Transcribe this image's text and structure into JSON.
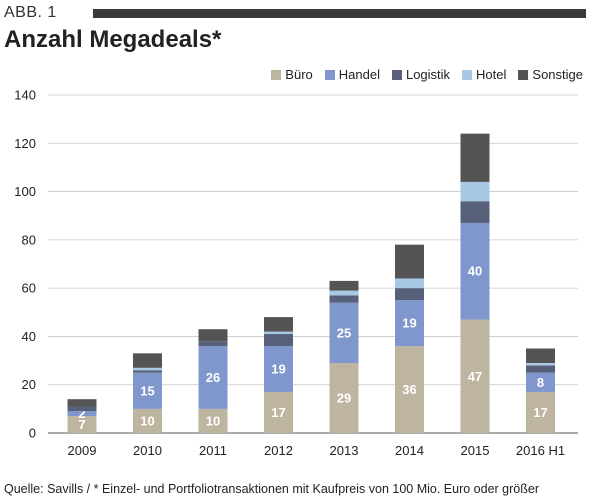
{
  "figure_label": "ABB. 1",
  "chart_data": {
    "type": "bar",
    "stacked": true,
    "title": "Anzahl Megadeals*",
    "categories": [
      "2009",
      "2010",
      "2011",
      "2012",
      "2013",
      "2014",
      "2015",
      "2016 H1"
    ],
    "ylim": [
      0,
      140
    ],
    "yticks": [
      0,
      20,
      40,
      60,
      80,
      100,
      120,
      140
    ],
    "grid": true,
    "legend_position": "top-right",
    "series": [
      {
        "name": "Büro",
        "color": "#bdb59f",
        "values": [
          7,
          10,
          10,
          17,
          29,
          36,
          47,
          17
        ],
        "labels": [
          "7",
          "10",
          "10",
          "17",
          "29",
          "36",
          "47",
          "17"
        ]
      },
      {
        "name": "Handel",
        "color": "#7f97cc",
        "values": [
          2,
          15,
          26,
          19,
          25,
          19,
          40,
          8
        ],
        "labels": [
          "2",
          "15",
          "26",
          "19",
          "25",
          "19",
          "40",
          "8"
        ]
      },
      {
        "name": "Logistik",
        "color": "#566079",
        "values": [
          2,
          1,
          2,
          5,
          3,
          5,
          9,
          3
        ],
        "labels": []
      },
      {
        "name": "Hotel",
        "color": "#a9c8e6",
        "values": [
          0,
          1,
          0,
          1,
          2,
          4,
          8,
          1
        ],
        "labels": []
      },
      {
        "name": "Sonstige",
        "color": "#545454",
        "values": [
          3,
          6,
          5,
          6,
          4,
          14,
          20,
          6
        ],
        "labels": []
      }
    ]
  },
  "source": "Quelle: Savills / * Einzel- und Portfoliotransaktionen mit Kaufpreis von 100 Mio. Euro oder größer"
}
